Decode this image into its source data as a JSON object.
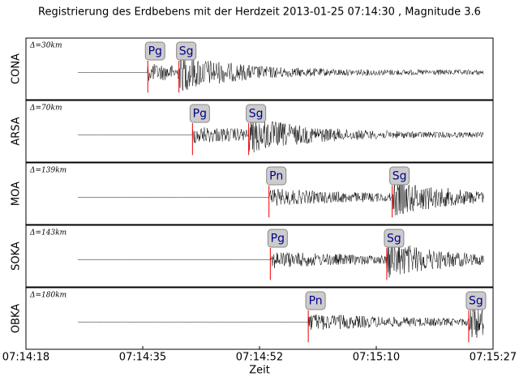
{
  "chart_data": [
    {
      "type": "seismogram",
      "title": "Registrierung des Erdbebens mit der Herdzeit 2013-01-25 07:14:30 , Magnitude 3.6",
      "station": "CONA",
      "distance_label": "Δ=30km",
      "picks": [
        {
          "label": "Pg",
          "x": 26076.0
        },
        {
          "label": "Sg",
          "x": 26080.6
        }
      ],
      "xlim": [
        26058,
        26127
      ]
    },
    {
      "type": "seismogram",
      "station": "ARSA",
      "distance_label": "Δ=70km",
      "picks": [
        {
          "label": "Pg",
          "x": 26082.6
        },
        {
          "label": "Sg",
          "x": 26090.9
        }
      ],
      "xlim": [
        26058,
        26127
      ]
    },
    {
      "type": "seismogram",
      "station": "MOA",
      "distance_label": "Δ=139km",
      "picks": [
        {
          "label": "Pn",
          "x": 26093.9
        },
        {
          "label": "Sg",
          "x": 26112.1
        }
      ],
      "xlim": [
        26058,
        26127
      ]
    },
    {
      "type": "seismogram",
      "station": "SOKA",
      "distance_label": "Δ=143km",
      "picks": [
        {
          "label": "Pg",
          "x": 26094.1
        },
        {
          "label": "Sg",
          "x": 26111.3
        }
      ],
      "xlim": [
        26058,
        26127
      ]
    },
    {
      "type": "seismogram",
      "station": "OBKA",
      "distance_label": "Δ=180km",
      "picks": [
        {
          "label": "Pn",
          "x": 26099.7
        },
        {
          "label": "Sg",
          "x": 26123.4
        }
      ],
      "xlim": [
        26058,
        26127
      ],
      "xlabel": "Zeit",
      "xticks": [
        {
          "value": 26058,
          "label": "07:14:18"
        },
        {
          "value": 26075.25,
          "label": "07:14:35"
        },
        {
          "value": 26092.5,
          "label": "07:14:52"
        },
        {
          "value": 26109.75,
          "label": "07:15:10"
        },
        {
          "value": 26127,
          "label": "07:15:27"
        }
      ]
    }
  ]
}
